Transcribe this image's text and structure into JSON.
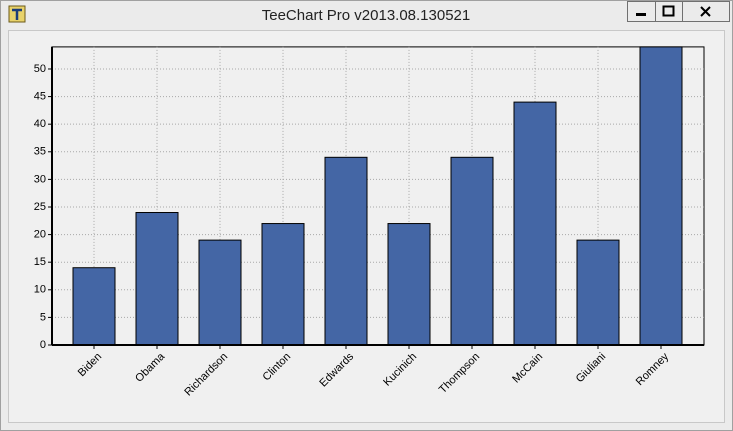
{
  "window": {
    "title": "TeeChart Pro v2013.08.130521"
  },
  "chart_data": {
    "type": "bar",
    "categories": [
      "Biden",
      "Obama",
      "Richardson",
      "Clinton",
      "Edwards",
      "Kucinich",
      "Thompson",
      "McCain",
      "Giuliani",
      "Romney"
    ],
    "values": [
      14,
      24,
      19,
      22,
      34,
      22,
      34,
      44,
      19,
      54
    ],
    "color": "#4466a5",
    "ylim": [
      0,
      54
    ],
    "yticks": [
      0,
      5,
      10,
      15,
      20,
      25,
      30,
      35,
      40,
      45,
      50
    ],
    "grid": true
  }
}
